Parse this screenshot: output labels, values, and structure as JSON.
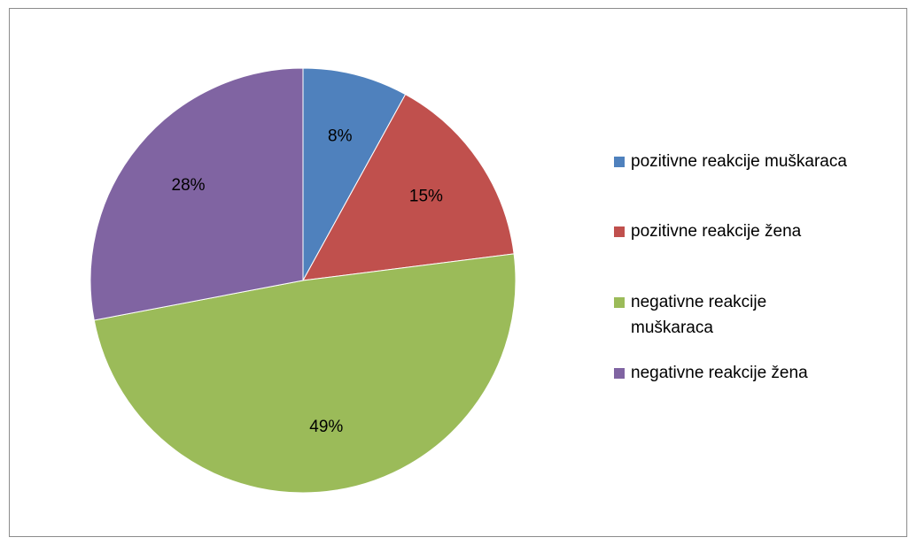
{
  "chart_data": {
    "type": "pie",
    "title": "",
    "legend_position": "right",
    "series": [
      {
        "values": [
          {
            "label": "pozitivne reakcije muškaraca",
            "value": 8,
            "display": "8%",
            "color": "#4f81bd",
            "legend_lines": [
              "pozitivne reakcije muškaraca"
            ]
          },
          {
            "label": "pozitivne reakcije žena",
            "value": 15,
            "display": "15%",
            "color": "#c0504d",
            "legend_lines": [
              "pozitivne reakcije žena"
            ]
          },
          {
            "label": "negativne reakcije muškaraca",
            "value": 49,
            "display": "49%",
            "color": "#9bbb59",
            "legend_lines": [
              "negativne reakcije",
              "muškaraca"
            ]
          },
          {
            "label": "negativne reakcije žena",
            "value": 28,
            "display": "28%",
            "color": "#8064a2",
            "legend_lines": [
              "negativne reakcije žena"
            ]
          }
        ]
      }
    ]
  }
}
